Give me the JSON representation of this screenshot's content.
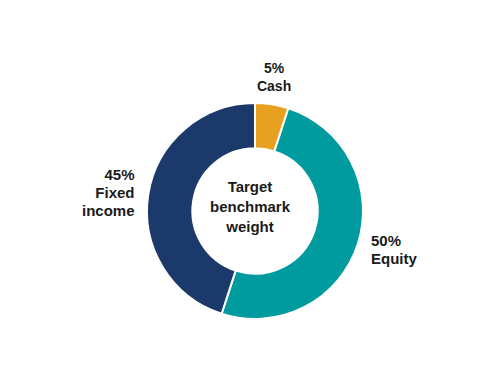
{
  "chart_data": {
    "type": "donut",
    "categories": [
      "Cash",
      "Equity",
      "Fixed\nincome"
    ],
    "values": [
      5,
      50,
      45
    ],
    "value_labels": [
      "5%",
      "50%",
      "45%"
    ],
    "colors": [
      "#E8A020",
      "#009B9E",
      "#1B3A6B"
    ],
    "data_labels": true,
    "annotations": [
      "Target\nbenchmark\nweight"
    ]
  }
}
